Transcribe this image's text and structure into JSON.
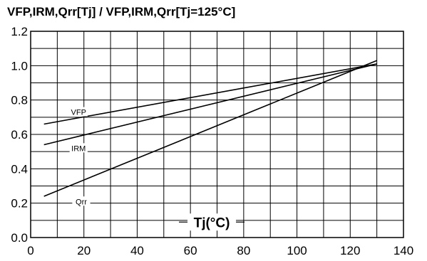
{
  "chart_data": {
    "type": "line",
    "title": "VFP,IRM,Qrr[Tj] / VFP,IRM,Qrr[Tj=125°C]",
    "xlabel": "Tj(°C)",
    "ylabel": "",
    "xlim": [
      0,
      140
    ],
    "ylim": [
      0.0,
      1.2
    ],
    "x_ticks": [
      0,
      20,
      40,
      60,
      80,
      100,
      120,
      140
    ],
    "y_ticks": [
      0.0,
      0.2,
      0.4,
      0.6,
      0.8,
      1.0,
      1.2
    ],
    "y_tick_labels": [
      "0.0",
      "0.2",
      "0.4",
      "0.6",
      "0.8",
      "1.0",
      "1.2"
    ],
    "x_grid_step": 10,
    "y_grid_step": 0.1,
    "grid": true,
    "series": [
      {
        "name": "VFP",
        "x": [
          5,
          130
        ],
        "y": [
          0.66,
          1.01
        ]
      },
      {
        "name": "IRM",
        "x": [
          5,
          130
        ],
        "y": [
          0.54,
          1.01
        ]
      },
      {
        "name": "Qrr",
        "x": [
          5,
          130
        ],
        "y": [
          0.24,
          1.03
        ]
      }
    ],
    "series_labels": [
      {
        "text": "VFP",
        "series": "VFP",
        "at_x": 18,
        "at_y": 0.73
      },
      {
        "text": "IRM",
        "series": "IRM",
        "at_x": 18,
        "at_y": 0.52
      },
      {
        "text": "Qrr",
        "series": "Qrr",
        "at_x": 19,
        "at_y": 0.21
      }
    ],
    "xlabel_position": {
      "at_x": 68,
      "at_y": 0.09
    }
  },
  "colors": {
    "line": "#000000",
    "grid": "#000000",
    "background": "#ffffff"
  }
}
